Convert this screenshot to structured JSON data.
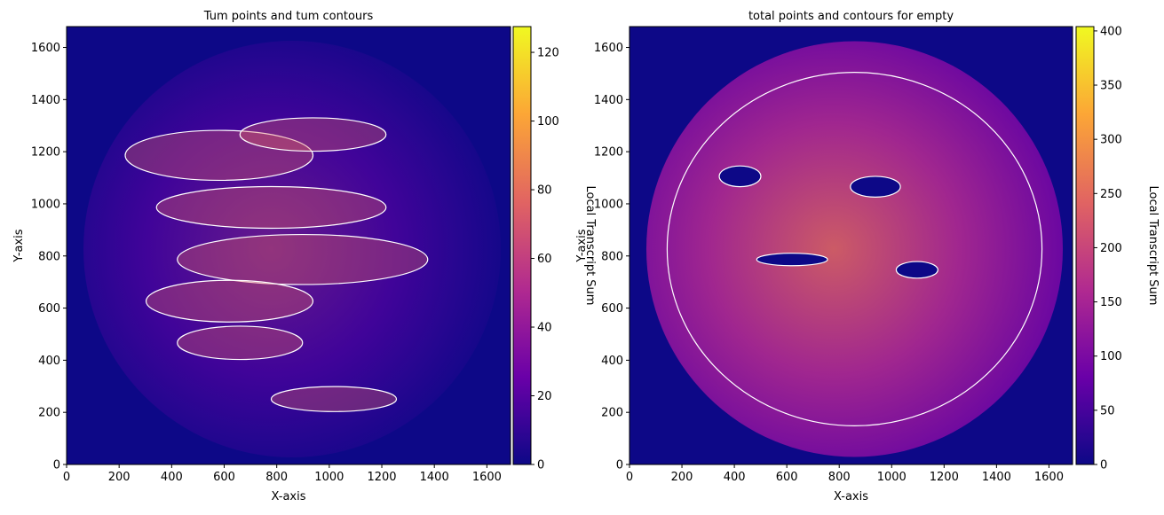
{
  "chart_data": [
    {
      "type": "heatmap",
      "title": "Tum points and tum contours",
      "x_label": "X-axis",
      "y_label": "Y-axis",
      "xlim": [
        0,
        1690
      ],
      "ylim": [
        0,
        1680
      ],
      "xticks": [
        0,
        200,
        400,
        600,
        800,
        1000,
        1200,
        1400,
        1600
      ],
      "yticks": [
        0,
        200,
        400,
        600,
        800,
        1000,
        1200,
        1400,
        1600
      ],
      "colormap": "plasma",
      "colorbar": {
        "label": "Local Transcript Sum",
        "lim": [
          0,
          127.5
        ],
        "ticks": [
          0,
          20,
          40,
          60,
          80,
          100,
          120
        ]
      }
    },
    {
      "type": "heatmap",
      "title": "total points and contours for empty",
      "x_label": "X-axis",
      "y_label": "Y-axis",
      "xlim": [
        0,
        1690
      ],
      "ylim": [
        0,
        1680
      ],
      "xticks": [
        0,
        200,
        400,
        600,
        800,
        1000,
        1200,
        1400,
        1600
      ],
      "yticks": [
        0,
        200,
        400,
        600,
        800,
        1000,
        1200,
        1400,
        1600
      ],
      "colormap": "plasma",
      "colorbar": {
        "label": "Local Transcript Sum",
        "lim": [
          0,
          404
        ],
        "ticks": [
          0,
          50,
          100,
          150,
          200,
          250,
          300,
          350,
          400
        ]
      }
    }
  ]
}
